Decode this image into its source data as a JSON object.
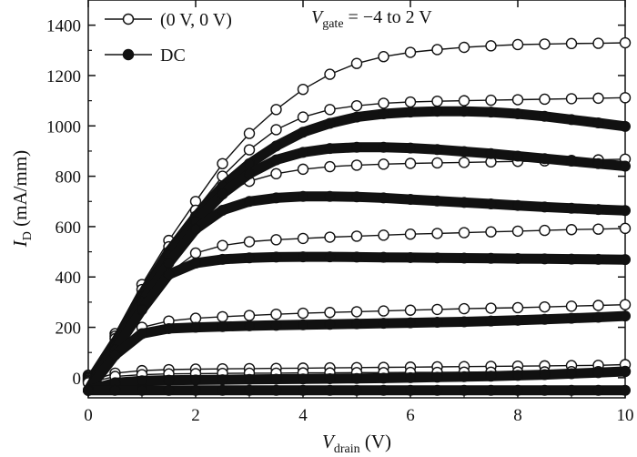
{
  "chart_data": {
    "type": "line",
    "title": "",
    "xlabel": {
      "main": "V",
      "sub": "drain",
      "unit": " (V)"
    },
    "ylabel": {
      "main": "I",
      "sub": "D",
      "unit": " (mA/mm)"
    },
    "annotation": {
      "main": "V",
      "sub": "gate",
      "rest": " = −4 to 2 V"
    },
    "xlim": [
      0,
      10
    ],
    "ylim": [
      -80,
      1500
    ],
    "xticks": [
      0,
      2,
      4,
      6,
      8,
      10
    ],
    "yticks": [
      0,
      200,
      400,
      600,
      800,
      1000,
      1200,
      1400
    ],
    "grid": false,
    "legend_position": "top-left",
    "legend": [
      {
        "label": "(0 V, 0 V)",
        "marker": "open-circle"
      },
      {
        "label": "DC",
        "marker": "filled-circle"
      }
    ],
    "series": [
      {
        "group": "pulsed",
        "marker": "open",
        "x": [
          0,
          0.5,
          1,
          1.5,
          2,
          2.5,
          3,
          3.5,
          4,
          4.5,
          5,
          5.5,
          6,
          6.5,
          7,
          7.5,
          8,
          8.5,
          9,
          9.5,
          10
        ],
        "y": [
          10,
          175,
          370,
          545,
          700,
          850,
          970,
          1065,
          1145,
          1205,
          1248,
          1275,
          1292,
          1303,
          1312,
          1318,
          1323,
          1325,
          1327,
          1328,
          1330
        ]
      },
      {
        "group": "pulsed",
        "marker": "open",
        "x": [
          0,
          0.5,
          1,
          1.5,
          2,
          2.5,
          3,
          3.5,
          4,
          4.5,
          5,
          5.5,
          6,
          6.5,
          7,
          7.5,
          8,
          8.5,
          9,
          9.5,
          10
        ],
        "y": [
          5,
          165,
          350,
          520,
          665,
          800,
          905,
          985,
          1035,
          1065,
          1080,
          1090,
          1095,
          1098,
          1100,
          1102,
          1104,
          1106,
          1108,
          1110,
          1112
        ]
      },
      {
        "group": "pulsed",
        "marker": "open",
        "x": [
          0,
          0.5,
          1,
          1.5,
          2,
          2.5,
          3,
          3.5,
          4,
          4.5,
          5,
          5.5,
          6,
          6.5,
          7,
          7.5,
          8,
          8.5,
          9,
          9.5,
          10
        ],
        "y": [
          0,
          155,
          330,
          490,
          640,
          730,
          780,
          810,
          828,
          838,
          844,
          848,
          851,
          853,
          855,
          857,
          859,
          861,
          863,
          865,
          868
        ]
      },
      {
        "group": "pulsed",
        "marker": "open",
        "x": [
          0,
          0.5,
          1,
          1.5,
          2,
          2.5,
          3,
          3.5,
          4,
          4.5,
          5,
          5.5,
          6,
          6.5,
          7,
          7.5,
          8,
          8.5,
          9,
          9.5,
          10
        ],
        "y": [
          -5,
          135,
          290,
          415,
          495,
          525,
          540,
          548,
          553,
          558,
          562,
          566,
          570,
          573,
          576,
          579,
          582,
          585,
          588,
          590,
          593
        ]
      },
      {
        "group": "pulsed",
        "marker": "open",
        "x": [
          0,
          0.5,
          1,
          1.5,
          2,
          2.5,
          3,
          3.5,
          4,
          4.5,
          5,
          5.5,
          6,
          6.5,
          7,
          7.5,
          8,
          8.5,
          9,
          9.5,
          10
        ],
        "y": [
          -10,
          110,
          200,
          225,
          236,
          242,
          247,
          252,
          256,
          259,
          262,
          265,
          268,
          271,
          274,
          276,
          278,
          281,
          284,
          287,
          290
        ]
      },
      {
        "group": "pulsed",
        "marker": "open",
        "x": [
          0,
          0.5,
          1,
          1.5,
          2,
          2.5,
          3,
          3.5,
          4,
          4.5,
          5,
          5.5,
          6,
          6.5,
          7,
          7.5,
          8,
          8.5,
          9,
          9.5,
          10
        ],
        "y": [
          -15,
          18,
          28,
          32,
          34,
          35,
          36,
          37,
          38,
          39,
          40,
          41,
          42,
          43,
          44,
          45,
          46,
          47,
          48,
          49,
          52
        ]
      },
      {
        "group": "pulsed",
        "marker": "open",
        "x": [
          0,
          0.5,
          1,
          1.5,
          2,
          2.5,
          3,
          3.5,
          4,
          4.5,
          5,
          5.5,
          6,
          6.5,
          7,
          7.5,
          8,
          8.5,
          9,
          9.5,
          10
        ],
        "y": [
          -20,
          5,
          12,
          15,
          16,
          17,
          18,
          18,
          19,
          19,
          20,
          20,
          21,
          21,
          22,
          22,
          23,
          23,
          24,
          24,
          25
        ]
      },
      {
        "group": "dc",
        "marker": "filled",
        "x": [
          0,
          0.5,
          1,
          1.5,
          2,
          2.5,
          3,
          3.5,
          4,
          4.5,
          5,
          5.5,
          6,
          6.5,
          7,
          7.5,
          8,
          8.5,
          9,
          9.5,
          10
        ],
        "y": [
          -50,
          140,
          330,
          500,
          640,
          760,
          850,
          920,
          975,
          1010,
          1035,
          1048,
          1055,
          1058,
          1058,
          1055,
          1048,
          1038,
          1025,
          1012,
          998
        ]
      },
      {
        "group": "dc",
        "marker": "filled",
        "x": [
          0,
          0.5,
          1,
          1.5,
          2,
          2.5,
          3,
          3.5,
          4,
          4.5,
          5,
          5.5,
          6,
          6.5,
          7,
          7.5,
          8,
          8.5,
          9,
          9.5,
          10
        ],
        "y": [
          -50,
          135,
          320,
          485,
          620,
          730,
          810,
          865,
          895,
          910,
          915,
          915,
          912,
          906,
          898,
          890,
          880,
          870,
          860,
          850,
          840
        ]
      },
      {
        "group": "dc",
        "marker": "filled",
        "x": [
          0,
          0.5,
          1,
          1.5,
          2,
          2.5,
          3,
          3.5,
          4,
          4.5,
          5,
          5.5,
          6,
          6.5,
          7,
          7.5,
          8,
          8.5,
          9,
          9.5,
          10
        ],
        "y": [
          -50,
          125,
          300,
          455,
          590,
          665,
          700,
          714,
          720,
          720,
          718,
          714,
          708,
          702,
          696,
          690,
          684,
          678,
          673,
          668,
          664
        ]
      },
      {
        "group": "dc",
        "marker": "filled",
        "x": [
          0,
          0.5,
          1,
          1.5,
          2,
          2.5,
          3,
          3.5,
          4,
          4.5,
          5,
          5.5,
          6,
          6.5,
          7,
          7.5,
          8,
          8.5,
          9,
          9.5,
          10
        ],
        "y": [
          -50,
          110,
          270,
          410,
          455,
          470,
          476,
          479,
          480,
          480,
          479,
          478,
          477,
          476,
          475,
          474,
          473,
          472,
          471,
          470,
          469
        ]
      },
      {
        "group": "dc",
        "marker": "filled",
        "x": [
          0,
          0.5,
          1,
          1.5,
          2,
          2.5,
          3,
          3.5,
          4,
          4.5,
          5,
          5.5,
          6,
          6.5,
          7,
          7.5,
          8,
          8.5,
          9,
          9.5,
          10
        ],
        "y": [
          -50,
          90,
          175,
          195,
          200,
          203,
          206,
          208,
          210,
          212,
          214,
          216,
          218,
          220,
          222,
          225,
          228,
          232,
          236,
          240,
          245
        ]
      },
      {
        "group": "dc",
        "marker": "filled",
        "x": [
          0,
          0.5,
          1,
          1.5,
          2,
          2.5,
          3,
          3.5,
          4,
          4.5,
          5,
          5.5,
          6,
          6.5,
          7,
          7.5,
          8,
          8.5,
          9,
          9.5,
          10
        ],
        "y": [
          -50,
          -20,
          -12,
          -10,
          -9,
          -8,
          -7,
          -6,
          -5,
          -4,
          -3,
          -2,
          0,
          2,
          4,
          6,
          9,
          12,
          16,
          20,
          25
        ]
      },
      {
        "group": "dc",
        "marker": "filled",
        "x": [
          0,
          0.5,
          1,
          1.5,
          2,
          2.5,
          3,
          3.5,
          4,
          4.5,
          5,
          5.5,
          6,
          6.5,
          7,
          7.5,
          8,
          8.5,
          9,
          9.5,
          10
        ],
        "y": [
          -50,
          -50,
          -50,
          -50,
          -50,
          -50,
          -50,
          -50,
          -50,
          -50,
          -50,
          -50,
          -50,
          -50,
          -50,
          -50,
          -50,
          -50,
          -50,
          -50,
          -50
        ]
      }
    ]
  }
}
